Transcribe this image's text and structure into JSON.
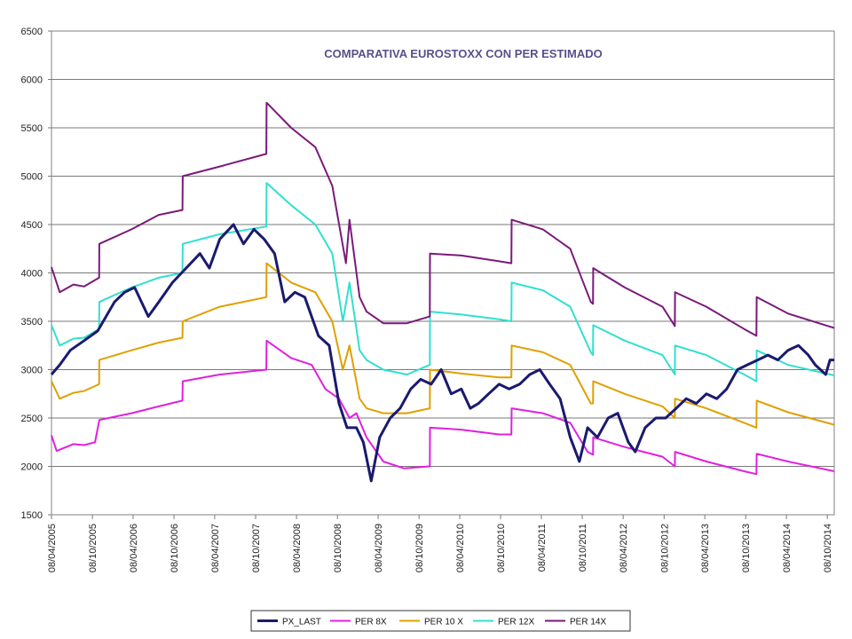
{
  "chart_data": {
    "type": "line",
    "title": "COMPARATIVA EUROSTOXX CON PER ESTIMADO",
    "xlabel": "",
    "ylabel": "",
    "ylim": [
      1500,
      6500
    ],
    "y_ticks": [
      1500,
      2000,
      2500,
      3000,
      3500,
      4000,
      4500,
      5000,
      5500,
      6000,
      6500
    ],
    "x_range": [
      "2005-04-08",
      "2014-11-08"
    ],
    "x_tick_labels": [
      "08/04/2005",
      "08/10/2005",
      "08/04/2006",
      "08/10/2006",
      "08/04/2007",
      "08/10/2007",
      "08/04/2008",
      "08/10/2008",
      "08/04/2009",
      "08/10/2009",
      "08/04/2010",
      "08/10/2010",
      "08/04/2011",
      "08/10/2011",
      "08/04/2012",
      "08/10/2012",
      "08/04/2013",
      "08/10/2013",
      "08/04/2014",
      "08/10/2014"
    ],
    "grid": true,
    "legend_position": "bottom",
    "series": [
      {
        "name": "PX_LAST",
        "color": "#1a1a6e",
        "width": 3,
        "x": [
          "2005-04-08",
          "2005-05-15",
          "2005-07-01",
          "2005-09-01",
          "2005-11-01",
          "2006-01-15",
          "2006-03-01",
          "2006-04-15",
          "2006-06-15",
          "2006-08-01",
          "2006-10-01",
          "2006-12-01",
          "2007-02-01",
          "2007-03-15",
          "2007-05-01",
          "2007-07-01",
          "2007-08-15",
          "2007-10-01",
          "2007-11-15",
          "2008-01-01",
          "2008-02-15",
          "2008-04-01",
          "2008-05-15",
          "2008-07-15",
          "2008-09-01",
          "2008-10-15",
          "2008-11-20",
          "2009-01-01",
          "2009-02-01",
          "2009-03-08",
          "2009-04-15",
          "2009-06-01",
          "2009-07-15",
          "2009-09-01",
          "2009-10-15",
          "2009-12-01",
          "2010-01-15",
          "2010-03-01",
          "2010-04-15",
          "2010-05-25",
          "2010-07-01",
          "2010-08-15",
          "2010-10-01",
          "2010-11-15",
          "2011-01-01",
          "2011-02-15",
          "2011-04-01",
          "2011-05-15",
          "2011-07-01",
          "2011-08-15",
          "2011-09-25",
          "2011-11-01",
          "2011-12-15",
          "2012-02-01",
          "2012-03-15",
          "2012-05-01",
          "2012-06-01",
          "2012-07-15",
          "2012-09-01",
          "2012-10-15",
          "2012-12-01",
          "2013-01-15",
          "2013-03-01",
          "2013-04-15",
          "2013-06-01",
          "2013-07-15",
          "2013-09-01",
          "2013-10-15",
          "2013-12-01",
          "2014-01-15",
          "2014-03-01",
          "2014-04-15",
          "2014-06-01",
          "2014-07-15",
          "2014-08-15",
          "2014-10-01",
          "2014-10-20",
          "2014-11-08"
        ],
        "values": [
          2950,
          3050,
          3200,
          3300,
          3400,
          3700,
          3800,
          3850,
          3550,
          3700,
          3900,
          4050,
          4200,
          4050,
          4350,
          4500,
          4300,
          4450,
          4350,
          4200,
          3700,
          3800,
          3750,
          3350,
          3250,
          2650,
          2400,
          2400,
          2250,
          1850,
          2300,
          2500,
          2600,
          2800,
          2900,
          2850,
          3000,
          2750,
          2800,
          2600,
          2650,
          2750,
          2850,
          2800,
          2850,
          2950,
          3000,
          2850,
          2700,
          2300,
          2050,
          2400,
          2300,
          2500,
          2550,
          2250,
          2150,
          2400,
          2500,
          2500,
          2600,
          2700,
          2650,
          2750,
          2700,
          2800,
          3000,
          3050,
          3100,
          3150,
          3100,
          3200,
          3250,
          3150,
          3050,
          2950,
          3100,
          3100
        ]
      },
      {
        "name": "PER 8X",
        "color": "#e020e0",
        "width": 2,
        "x": [
          "2005-04-08",
          "2005-05-01",
          "2005-07-15",
          "2005-09-01",
          "2005-10-20",
          "2005-11-08",
          "2006-04-01",
          "2006-08-01",
          "2006-11-15",
          "2006-11-16",
          "2007-05-01",
          "2007-11-25",
          "2007-11-26",
          "2008-03-15",
          "2008-06-15",
          "2008-08-15",
          "2008-10-15",
          "2008-12-01",
          "2009-01-01",
          "2009-02-15",
          "2009-05-01",
          "2009-08-01",
          "2009-11-25",
          "2009-11-26",
          "2010-04-15",
          "2010-10-01",
          "2010-11-25",
          "2010-11-26",
          "2011-04-15",
          "2011-08-15",
          "2011-11-01",
          "2011-11-25",
          "2011-11-26",
          "2012-04-15",
          "2012-10-01",
          "2012-11-25",
          "2012-11-26",
          "2013-04-15",
          "2013-10-01",
          "2013-11-25",
          "2013-11-26",
          "2014-04-15",
          "2014-11-08"
        ],
        "values": [
          2320,
          2160,
          2230,
          2220,
          2250,
          2480,
          2550,
          2620,
          2680,
          2880,
          2950,
          3000,
          3300,
          3120,
          3050,
          2800,
          2700,
          2500,
          2550,
          2300,
          2050,
          1980,
          2000,
          2400,
          2380,
          2330,
          2330,
          2600,
          2550,
          2450,
          2150,
          2120,
          2300,
          2200,
          2100,
          2000,
          2150,
          2050,
          1950,
          1920,
          2130,
          2050,
          1950
        ]
      },
      {
        "name": "PER 10 X",
        "color": "#e0a000",
        "width": 2,
        "x": [
          "2005-04-08",
          "2005-05-15",
          "2005-07-15",
          "2005-09-01",
          "2005-11-07",
          "2005-11-08",
          "2006-04-01",
          "2006-08-01",
          "2006-11-15",
          "2006-11-16",
          "2007-05-01",
          "2007-11-25",
          "2007-11-26",
          "2008-03-15",
          "2008-07-01",
          "2008-09-15",
          "2008-11-01",
          "2008-12-01",
          "2009-01-15",
          "2009-02-15",
          "2009-05-01",
          "2009-08-15",
          "2009-11-25",
          "2009-11-26",
          "2010-04-15",
          "2010-10-01",
          "2010-11-25",
          "2010-11-26",
          "2011-04-15",
          "2011-08-15",
          "2011-11-15",
          "2011-11-25",
          "2011-11-26",
          "2012-04-15",
          "2012-10-01",
          "2012-11-25",
          "2012-11-26",
          "2013-04-15",
          "2013-10-01",
          "2013-11-25",
          "2013-11-26",
          "2014-04-15",
          "2014-11-08"
        ],
        "values": [
          2880,
          2700,
          2760,
          2780,
          2850,
          3100,
          3200,
          3280,
          3330,
          3500,
          3650,
          3750,
          4100,
          3900,
          3800,
          3500,
          3000,
          3250,
          2700,
          2600,
          2550,
          2550,
          2600,
          3000,
          2960,
          2920,
          2920,
          3250,
          3180,
          3050,
          2650,
          2650,
          2880,
          2750,
          2620,
          2500,
          2700,
          2600,
          2450,
          2400,
          2680,
          2560,
          2430
        ]
      },
      {
        "name": "PER 12X",
        "color": "#30e0d0",
        "width": 2,
        "x": [
          "2005-04-08",
          "2005-05-15",
          "2005-07-15",
          "2005-09-01",
          "2005-11-07",
          "2005-11-08",
          "2006-04-01",
          "2006-08-01",
          "2006-11-15",
          "2006-11-16",
          "2007-05-01",
          "2007-11-25",
          "2007-11-26",
          "2008-03-15",
          "2008-07-01",
          "2008-09-15",
          "2008-11-01",
          "2008-12-01",
          "2009-01-15",
          "2009-02-15",
          "2009-05-01",
          "2009-08-15",
          "2009-11-25",
          "2009-11-26",
          "2010-04-15",
          "2010-10-01",
          "2010-11-25",
          "2010-11-26",
          "2011-04-15",
          "2011-08-15",
          "2011-11-15",
          "2011-11-25",
          "2011-11-26",
          "2012-04-15",
          "2012-10-01",
          "2012-11-25",
          "2012-11-26",
          "2013-04-15",
          "2013-10-01",
          "2013-11-25",
          "2013-11-26",
          "2014-04-15",
          "2014-11-08"
        ],
        "values": [
          3460,
          3250,
          3320,
          3330,
          3420,
          3700,
          3850,
          3950,
          4000,
          4300,
          4400,
          4480,
          4930,
          4700,
          4500,
          4200,
          3500,
          3900,
          3200,
          3100,
          3000,
          2950,
          3050,
          3600,
          3570,
          3520,
          3500,
          3900,
          3820,
          3650,
          3180,
          3150,
          3460,
          3300,
          3150,
          2950,
          3250,
          3150,
          2950,
          2880,
          3200,
          3050,
          2940
        ]
      },
      {
        "name": "PER 14X",
        "color": "#7a1a7a",
        "width": 2,
        "x": [
          "2005-04-08",
          "2005-05-15",
          "2005-07-15",
          "2005-09-01",
          "2005-11-07",
          "2005-11-08",
          "2006-04-01",
          "2006-08-01",
          "2006-11-15",
          "2006-11-16",
          "2007-05-01",
          "2007-11-25",
          "2007-11-26",
          "2008-03-15",
          "2008-07-01",
          "2008-09-15",
          "2008-11-15",
          "2008-12-01",
          "2009-01-15",
          "2009-02-15",
          "2009-05-01",
          "2009-08-15",
          "2009-11-25",
          "2009-11-26",
          "2010-04-15",
          "2010-10-01",
          "2010-11-25",
          "2010-11-26",
          "2011-04-15",
          "2011-08-15",
          "2011-11-15",
          "2011-11-25",
          "2011-11-26",
          "2012-04-15",
          "2012-10-01",
          "2012-11-25",
          "2012-11-26",
          "2013-04-15",
          "2013-10-01",
          "2013-11-25",
          "2013-11-26",
          "2014-04-15",
          "2014-11-08"
        ],
        "values": [
          4060,
          3800,
          3880,
          3860,
          3950,
          4300,
          4450,
          4600,
          4650,
          5000,
          5100,
          5230,
          5760,
          5500,
          5300,
          4900,
          4100,
          4550,
          3750,
          3600,
          3480,
          3480,
          3550,
          4200,
          4180,
          4120,
          4100,
          4550,
          4450,
          4250,
          3700,
          3680,
          4050,
          3850,
          3650,
          3450,
          3800,
          3650,
          3420,
          3350,
          3750,
          3580,
          3430
        ]
      }
    ]
  }
}
